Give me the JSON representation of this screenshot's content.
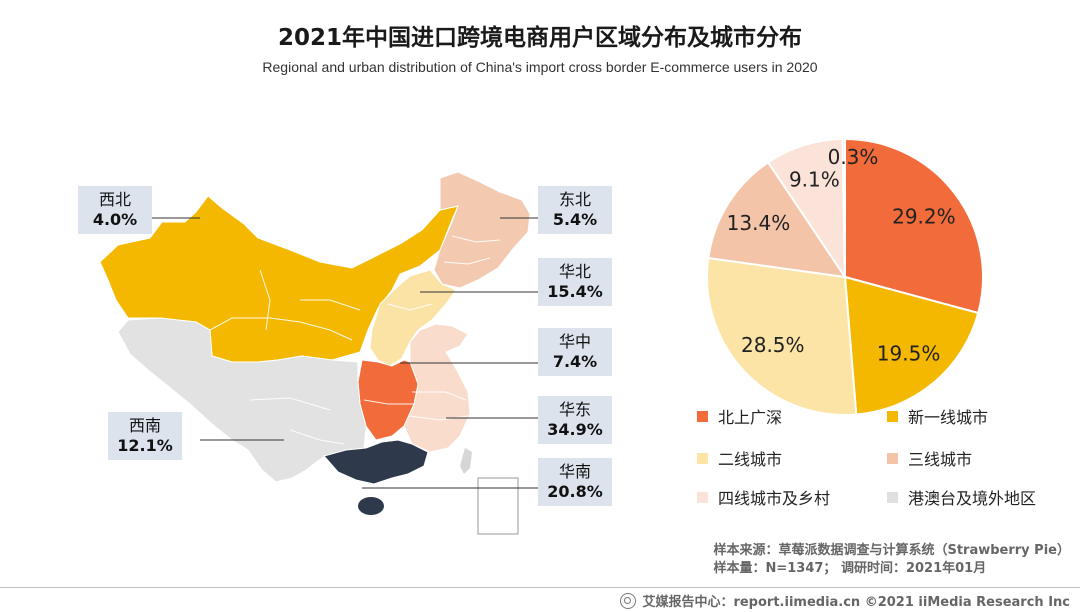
{
  "title": "2021年中国进口跨境电商用户区域分布及城市分布",
  "subtitle": "Regional and urban distribution of China's import cross border E-commerce users in 2020",
  "chart_data": [
    {
      "type": "choropleth-map",
      "regions": [
        {
          "name": "西北",
          "value": 4.0,
          "label": "4.0%",
          "color": "#f5b800"
        },
        {
          "name": "东北",
          "value": 5.4,
          "label": "5.4%",
          "color": "#f3c9b0"
        },
        {
          "name": "华北",
          "value": 15.4,
          "label": "15.4%",
          "color": "#fbe3a5"
        },
        {
          "name": "华中",
          "value": 7.4,
          "label": "7.4%",
          "color": "#f9dccb"
        },
        {
          "name": "华东",
          "value": 34.9,
          "label": "34.9%",
          "color": "#f26b3a"
        },
        {
          "name": "西南",
          "value": 12.1,
          "label": "12.1%",
          "color": "#e2e2e2"
        },
        {
          "name": "华南",
          "value": 20.8,
          "label": "20.8%",
          "color": "#2e3a4c"
        }
      ]
    },
    {
      "type": "pie",
      "labels": [
        "北上广深",
        "新一线城市",
        "二线城市",
        "三线城市",
        "四线城市及乡村",
        "港澳台及境外地区"
      ],
      "values": [
        29.2,
        19.5,
        28.5,
        13.4,
        9.1,
        0.3
      ],
      "value_labels": [
        "29.2%",
        "19.5%",
        "28.5%",
        "13.4%",
        "9.1%",
        "0.3%"
      ],
      "colors": [
        "#f26b3a",
        "#f5b800",
        "#fce3a6",
        "#f3c4a8",
        "#fbe3d9",
        "#e0e0e0"
      ],
      "start": "12 o'clock, clockwise"
    }
  ],
  "source": {
    "line1": "样本来源：草莓派数据调查与计算系统（Strawberry Pie）",
    "line2": "样本量：N=1347；  调研时间：2021年01月"
  },
  "footer": {
    "text": "艾媒报告中心：report.iimedia.cn   ©2021  iiMedia Research  Inc"
  }
}
